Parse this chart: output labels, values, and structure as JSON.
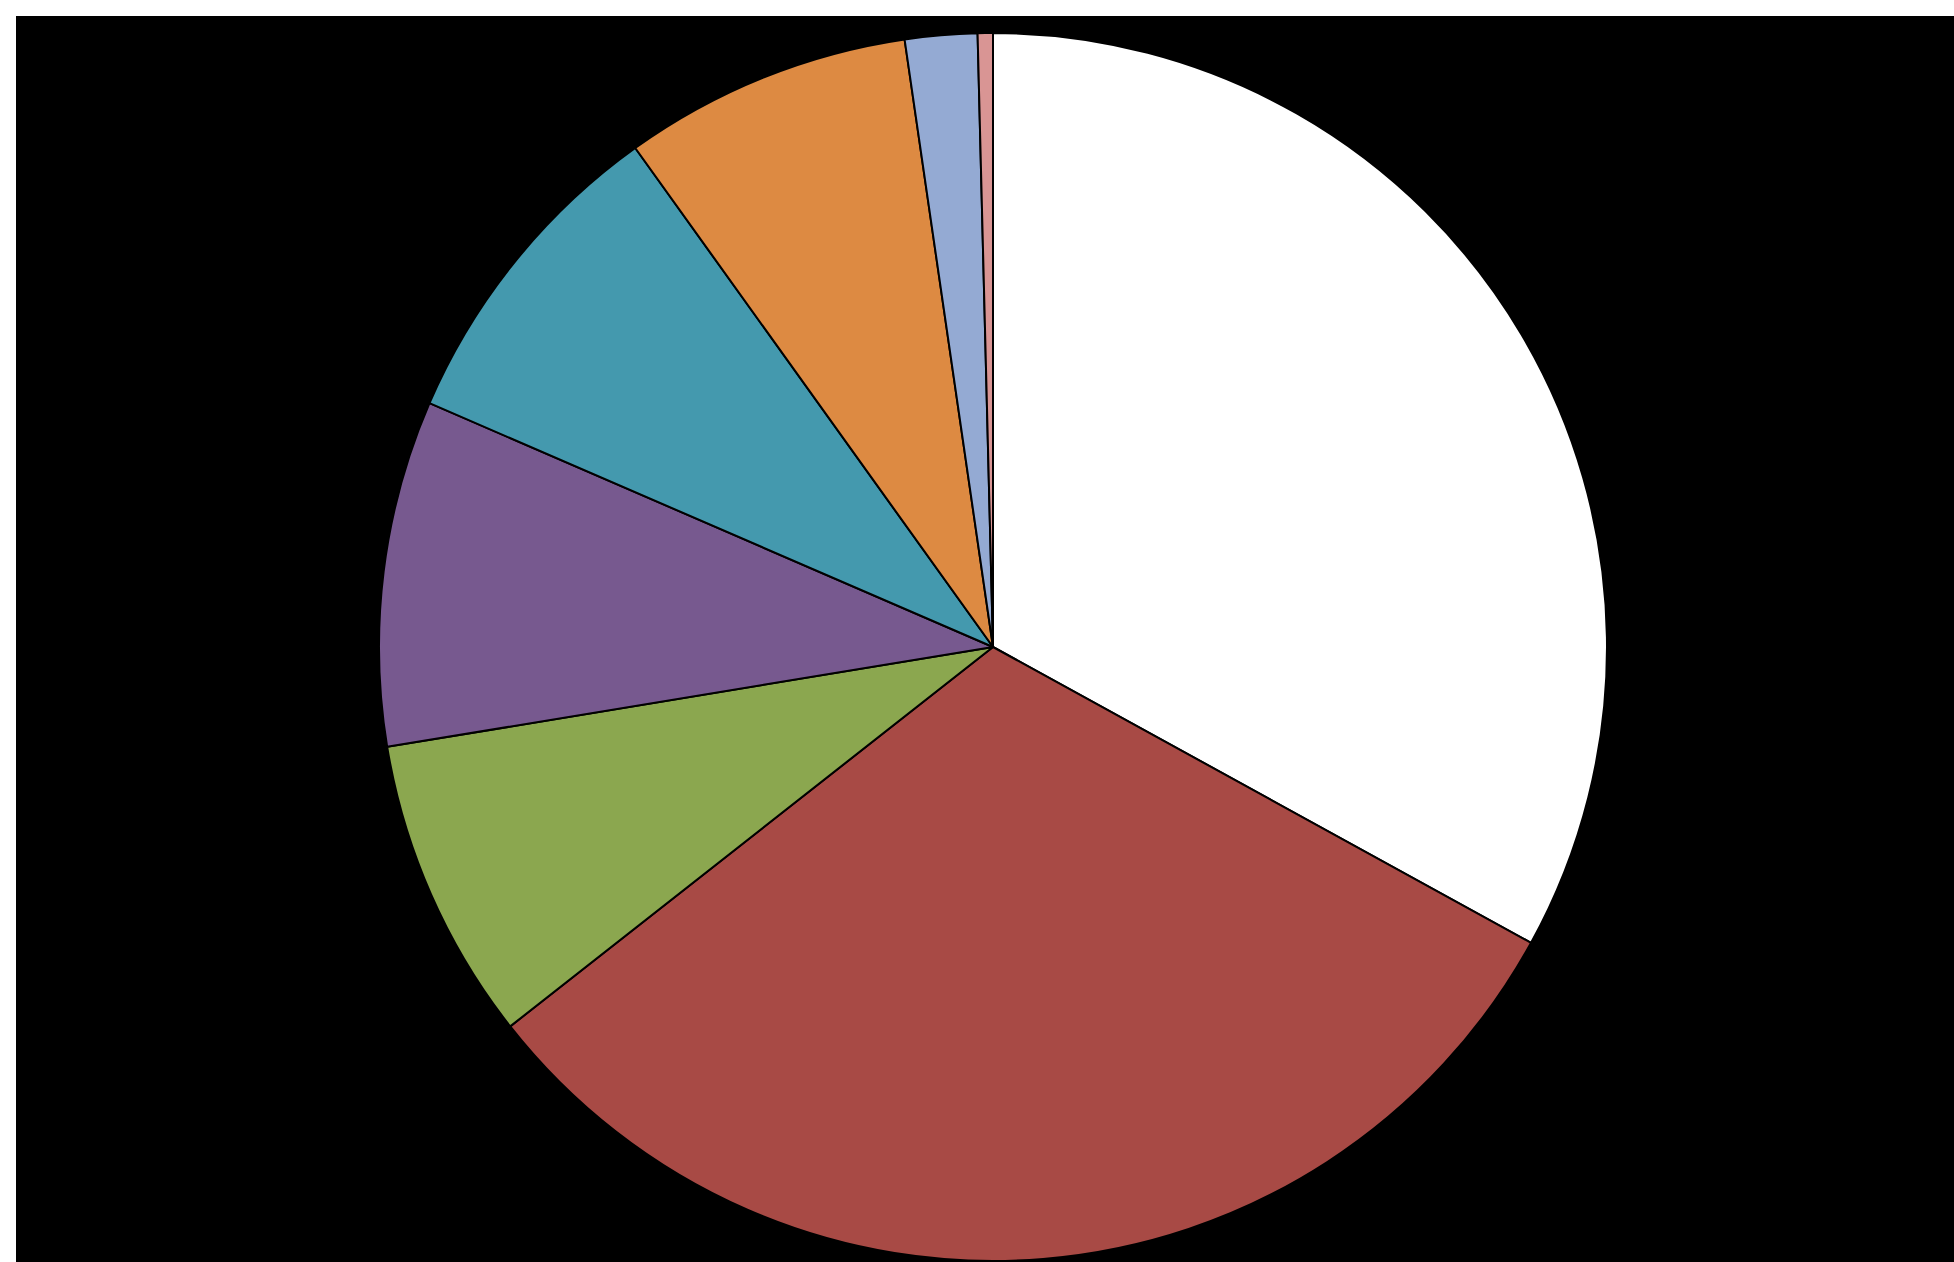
{
  "chart_data": {
    "type": "pie",
    "categories": [
      null,
      null,
      null,
      null,
      null,
      null,
      null,
      null
    ],
    "values": [
      33,
      31.4,
      8,
      9.1,
      8.6,
      7.6,
      1.9,
      0.4
    ],
    "colors": [
      "#ffffff",
      "#a84a45",
      "#8ba74f",
      "#77598f",
      "#4499ae",
      "#dd8a42",
      "#94aad3",
      "#d99594"
    ],
    "legend": false
  }
}
